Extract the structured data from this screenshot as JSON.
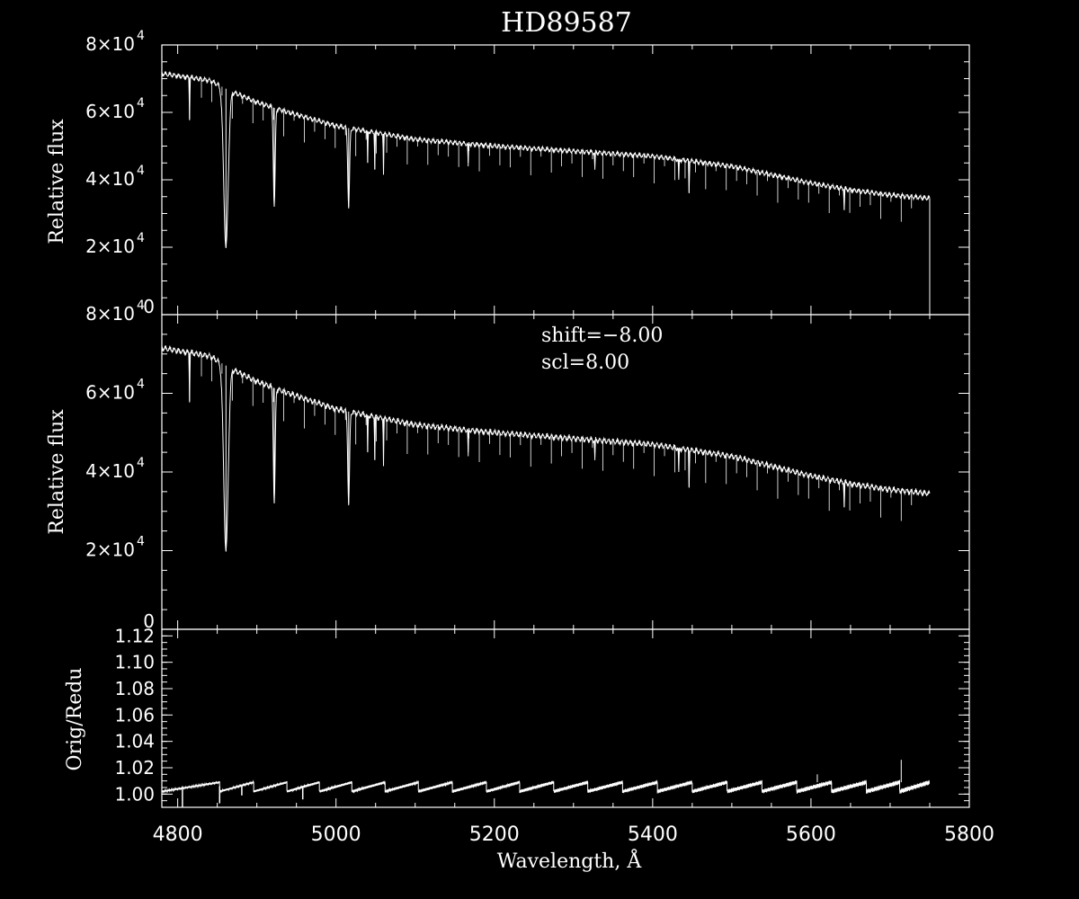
{
  "chart_data": [
    {
      "type": "line",
      "title": "HD89587",
      "ylabel": "Relative flux",
      "xlim": [
        4780,
        5800
      ],
      "ylim": [
        0,
        80000
      ],
      "ytick_mantissas": [
        "0",
        "2",
        "4",
        "6",
        "8"
      ],
      "ytick_base": "×10",
      "ytick_exponent": "4",
      "continuum": {
        "x": [
          4780,
          4840,
          4870,
          4900,
          4940,
          5000,
          5100,
          5200,
          5300,
          5400,
          5450,
          5500,
          5550,
          5600,
          5650,
          5700,
          5750
        ],
        "y": [
          71500,
          69500,
          66000,
          63000,
          60000,
          56000,
          52000,
          50000,
          48500,
          47000,
          45500,
          44000,
          41500,
          39000,
          37000,
          35500,
          34500
        ]
      },
      "absorption_lines": [
        {
          "x": 4861,
          "y": 20000
        },
        {
          "x": 4922,
          "y": 32000
        },
        {
          "x": 5016,
          "y": 32000
        },
        {
          "x": 4815,
          "y": 58000
        },
        {
          "x": 5040,
          "y": 45000
        },
        {
          "x": 5049,
          "y": 43000
        },
        {
          "x": 5060,
          "y": 42000
        },
        {
          "x": 5167,
          "y": 44000
        },
        {
          "x": 5327,
          "y": 43000
        },
        {
          "x": 5433,
          "y": 40000
        },
        {
          "x": 5446,
          "y": 36000
        },
        {
          "x": 5642,
          "y": 31000
        }
      ],
      "end_drop": {
        "x": 5750,
        "y": 0
      }
    },
    {
      "type": "line",
      "ylabel": "Relative flux",
      "xlim": [
        4780,
        5800
      ],
      "ylim": [
        0,
        80000
      ],
      "ytick_mantissas": [
        "0",
        "2",
        "4",
        "6",
        "8"
      ],
      "ytick_base": "×10",
      "ytick_exponent": "4",
      "annotations": [
        "shift=−8.00",
        "scl=8.00"
      ],
      "continuum": {
        "x": [
          4780,
          4840,
          4870,
          4900,
          4940,
          5000,
          5100,
          5200,
          5300,
          5400,
          5450,
          5500,
          5550,
          5600,
          5650,
          5700,
          5750
        ],
        "y": [
          71500,
          69500,
          66000,
          63000,
          60000,
          56000,
          52000,
          50000,
          48500,
          47000,
          45500,
          44000,
          41500,
          39000,
          37000,
          35500,
          34500
        ]
      },
      "absorption_lines": [
        {
          "x": 4861,
          "y": 20000
        },
        {
          "x": 4922,
          "y": 32000
        },
        {
          "x": 5016,
          "y": 32000
        },
        {
          "x": 4815,
          "y": 58000
        },
        {
          "x": 5040,
          "y": 45000
        },
        {
          "x": 5049,
          "y": 43000
        },
        {
          "x": 5060,
          "y": 42000
        },
        {
          "x": 5167,
          "y": 44000
        },
        {
          "x": 5327,
          "y": 43000
        },
        {
          "x": 5433,
          "y": 40000
        },
        {
          "x": 5446,
          "y": 36000
        },
        {
          "x": 5642,
          "y": 31000
        }
      ]
    },
    {
      "type": "line",
      "ylabel": "Orig/Redu",
      "xlabel": "Wavelength, Å",
      "xlim": [
        4780,
        5800
      ],
      "ylim": [
        0.99,
        1.125
      ],
      "xticks": [
        "4800",
        "5000",
        "5200",
        "5400",
        "5600",
        "5800"
      ],
      "yticks": [
        "1.00",
        "1.02",
        "1.04",
        "1.06",
        "1.08",
        "1.10",
        "1.12"
      ],
      "order_segments_x": [
        4780,
        4853,
        4896,
        4938,
        4979,
        5020,
        5062,
        5104,
        5147,
        5190,
        5232,
        5275,
        5318,
        5362,
        5406,
        5450,
        5494,
        5538,
        5582,
        5626,
        5670,
        5712,
        5750
      ],
      "segment_start": 1.002,
      "segment_end": 1.009,
      "dips": [
        {
          "x": 4806,
          "y": 0.99
        },
        {
          "x": 4853,
          "y": 0.993
        },
        {
          "x": 4881,
          "y": 0.999
        },
        {
          "x": 4958,
          "y": 0.996
        }
      ],
      "spikes": [
        {
          "x": 5714,
          "y": 1.026
        },
        {
          "x": 5608,
          "y": 1.015
        }
      ]
    }
  ]
}
